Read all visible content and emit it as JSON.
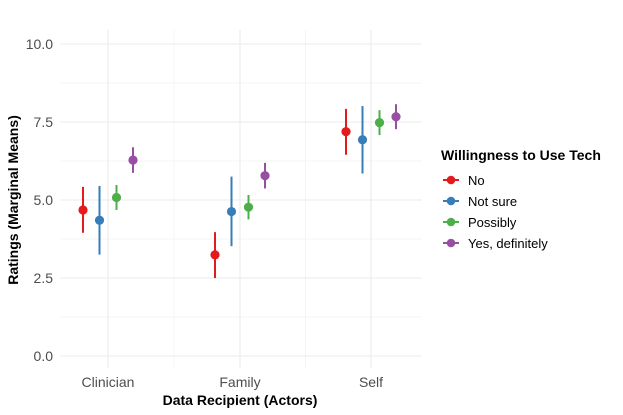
{
  "chart_data": {
    "type": "pointrange",
    "xlabel": "Data Recipient (Actors)",
    "ylabel": "Ratings (Marginal Means)",
    "categories": [
      "Clinician",
      "Family",
      "Self"
    ],
    "ylim": [
      0,
      10
    ],
    "yticks": [
      0,
      2.5,
      5,
      7.5,
      10
    ],
    "ytick_labels": [
      "0.0",
      "2.5",
      "5.0",
      "7.5",
      "10.0"
    ],
    "grid": true,
    "legend": {
      "title": "Willingness to Use Tech",
      "position": "right"
    },
    "series": [
      {
        "name": "No",
        "color": "#e41a1c",
        "means": [
          4.68,
          3.24,
          7.19
        ],
        "lower": [
          3.95,
          2.5,
          6.45
        ],
        "upper": [
          5.42,
          3.97,
          7.92
        ]
      },
      {
        "name": "Not sure",
        "color": "#377eb8",
        "means": [
          4.35,
          4.63,
          6.93
        ],
        "lower": [
          3.25,
          3.52,
          5.85
        ],
        "upper": [
          5.45,
          5.75,
          8.01
        ]
      },
      {
        "name": "Possibly",
        "color": "#4daf4a",
        "means": [
          5.08,
          4.77,
          7.48
        ],
        "lower": [
          4.68,
          4.38,
          7.08
        ],
        "upper": [
          5.48,
          5.16,
          7.88
        ]
      },
      {
        "name": "Yes, definitely",
        "color": "#984ea3",
        "means": [
          6.28,
          5.78,
          7.67
        ],
        "lower": [
          5.87,
          5.37,
          7.27
        ],
        "upper": [
          6.69,
          6.19,
          8.07
        ]
      }
    ]
  }
}
